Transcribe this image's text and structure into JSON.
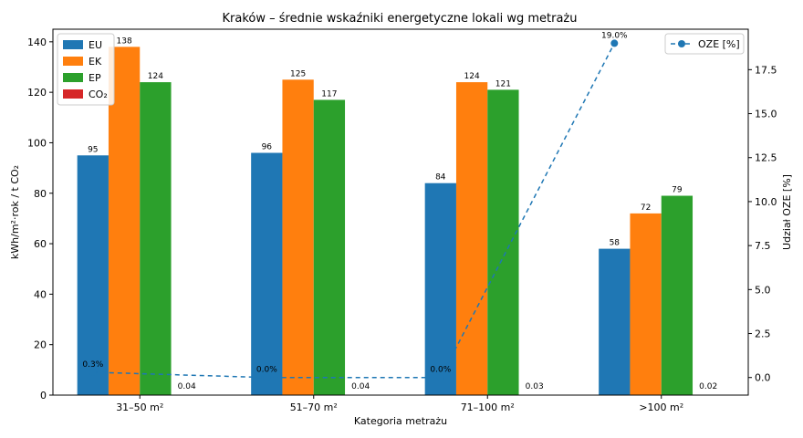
{
  "chart_data": {
    "type": "bar",
    "title": "Kraków – średnie wskaźniki energetyczne lokali wg metrażu",
    "xlabel": "Kategoria metrażu",
    "ylabel": "kWh/m²·rok / t CO₂",
    "y2label": "Udział OZE [%]",
    "categories": [
      "31–50 m²",
      "51–70 m²",
      "71–100 m²",
      ">100 m²"
    ],
    "ylim": [
      0,
      145
    ],
    "y2lim": [
      -1,
      19.8
    ],
    "yticks": [
      0,
      20,
      40,
      60,
      80,
      100,
      120,
      140
    ],
    "y2ticks": [
      "0.0",
      "2.5",
      "5.0",
      "7.5",
      "10.0",
      "12.5",
      "15.0",
      "17.5"
    ],
    "series": [
      {
        "name": "EU",
        "color": "#1f77b4",
        "values": [
          95,
          96,
          84,
          58
        ],
        "labels": [
          "95",
          "96",
          "84",
          "58"
        ]
      },
      {
        "name": "EK",
        "color": "#ff7f0e",
        "values": [
          138,
          125,
          124,
          72
        ],
        "labels": [
          "138",
          "125",
          "124",
          "72"
        ]
      },
      {
        "name": "EP",
        "color": "#2ca02c",
        "values": [
          124,
          117,
          121,
          79
        ],
        "labels": [
          "124",
          "117",
          "121",
          "79"
        ]
      },
      {
        "name": "CO₂",
        "color": "#d62728",
        "values": [
          0.04,
          0.04,
          0.03,
          0.02
        ],
        "labels": [
          "0.04",
          "0.04",
          "0.03",
          "0.02"
        ]
      }
    ],
    "line_series": {
      "name": "OZE [%]",
      "color": "#1f77b4",
      "axis": "right",
      "values": [
        0.3,
        0.0,
        0.0,
        19.0
      ],
      "labels": [
        "0.3%",
        "0.0%",
        "0.0%",
        "19.0%"
      ]
    },
    "legend_left": "upper-left",
    "legend_right": "upper-right",
    "grid": false
  }
}
